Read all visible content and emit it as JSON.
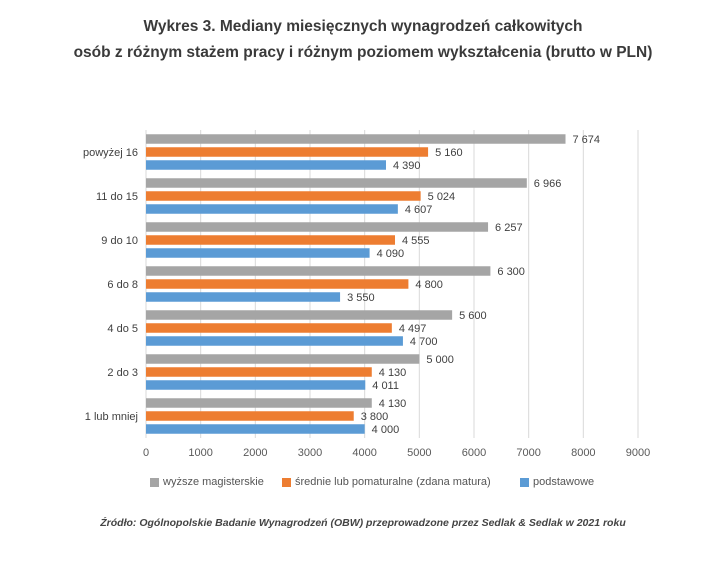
{
  "chart_data": {
    "type": "bar",
    "orientation": "horizontal",
    "title_line1": "Wykres 3. Mediany miesięcznych wynagrodzeń całkowitych",
    "title_line2": "osób z różnym stażem pracy i różnym poziomem wykształcenia (brutto w PLN)",
    "categories": [
      "powyżej 16",
      "11 do 15",
      "9 do 10",
      "6 do 8",
      "4 do 5",
      "2 do 3",
      "1 lub mniej"
    ],
    "series": [
      {
        "name": "wyższe magisterskie",
        "color": "#a5a5a5",
        "values": [
          7674,
          6966,
          6257,
          6300,
          5600,
          5000,
          4130
        ],
        "labels": [
          "7 674",
          "6 966",
          "6 257",
          "6 300",
          "5 600",
          "5 000",
          "4 130"
        ]
      },
      {
        "name": "średnie lub pomaturalne (zdana matura)",
        "color": "#ed7d31",
        "values": [
          5160,
          5024,
          4555,
          4800,
          4497,
          4130,
          3800
        ],
        "labels": [
          "5 160",
          "5 024",
          "4 555",
          "4 800",
          "4 497",
          "4 130",
          "3 800"
        ]
      },
      {
        "name": "podstawowe",
        "color": "#5b9bd5",
        "values": [
          4390,
          4607,
          4090,
          3550,
          4700,
          4011,
          4000
        ],
        "labels": [
          "4 390",
          "4 607",
          "4 090",
          "3 550",
          "4 700",
          "4 011",
          "4 000"
        ]
      }
    ],
    "xlim": [
      0,
      9000
    ],
    "xticks": [
      "0",
      "1000",
      "2000",
      "3000",
      "4000",
      "5000",
      "6000",
      "7000",
      "8000",
      "9000"
    ],
    "grid": "vertical",
    "legend_position": "bottom"
  },
  "source": "Źródło: Ogólnopolskie Badanie Wynagrodzeń (OBW) przeprowadzone przez Sedlak & Sedlak w 2021 roku"
}
